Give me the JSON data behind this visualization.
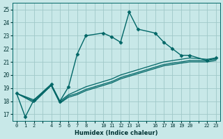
{
  "xlabel": "Humidex (Indice chaleur)",
  "ylabel": "",
  "bg_color": "#c8e8e8",
  "grid_color": "#a0c8c8",
  "line_color": "#006666",
  "ylim": [
    16.5,
    25.5
  ],
  "xlim": [
    -0.5,
    23.5
  ],
  "yticks": [
    17,
    18,
    19,
    20,
    21,
    22,
    23,
    24,
    25
  ],
  "xtick_positions": [
    0,
    1,
    2,
    3,
    4,
    5,
    6,
    7,
    8,
    9,
    10,
    11,
    12,
    13,
    14,
    15,
    16,
    17,
    18,
    19,
    20,
    21,
    22,
    23
  ],
  "xtick_labels": [
    "0",
    "1",
    "2",
    "",
    "4",
    "5",
    "6",
    "7",
    "8",
    "",
    "10",
    "11",
    "12",
    "13",
    "14",
    "",
    "16",
    "17",
    "18",
    "19",
    "20",
    "",
    "22",
    "23"
  ],
  "lines": [
    {
      "x": [
        0,
        1,
        2,
        4,
        5,
        6,
        7,
        8,
        10,
        11,
        12,
        13,
        14,
        16,
        17,
        18,
        19,
        20,
        22,
        23
      ],
      "y": [
        18.6,
        16.8,
        18.1,
        19.3,
        18.0,
        19.1,
        21.6,
        23.0,
        23.2,
        22.9,
        22.5,
        24.8,
        23.5,
        23.2,
        22.5,
        22.0,
        21.5,
        21.5,
        21.1,
        21.3
      ],
      "marker": "D",
      "markersize": 2.5,
      "linewidth": 1.0
    },
    {
      "x": [
        0,
        2,
        4,
        5,
        6,
        7,
        8,
        10,
        11,
        12,
        13,
        14,
        16,
        17,
        18,
        19,
        20,
        22,
        23
      ],
      "y": [
        18.6,
        18.1,
        19.2,
        18.0,
        18.5,
        18.8,
        19.1,
        19.5,
        19.7,
        20.0,
        20.2,
        20.4,
        20.8,
        21.0,
        21.1,
        21.2,
        21.3,
        21.2,
        21.3
      ],
      "marker": null,
      "markersize": 0,
      "linewidth": 0.9
    },
    {
      "x": [
        0,
        2,
        4,
        5,
        6,
        7,
        8,
        10,
        11,
        12,
        13,
        14,
        16,
        17,
        18,
        19,
        20,
        22,
        23
      ],
      "y": [
        18.6,
        18.0,
        19.2,
        17.9,
        18.4,
        18.6,
        18.9,
        19.3,
        19.5,
        19.8,
        20.0,
        20.2,
        20.6,
        20.8,
        20.9,
        21.0,
        21.1,
        21.1,
        21.2
      ],
      "marker": null,
      "markersize": 0,
      "linewidth": 0.9
    },
    {
      "x": [
        0,
        2,
        4,
        5,
        6,
        7,
        8,
        10,
        11,
        12,
        13,
        14,
        16,
        17,
        18,
        19,
        20,
        22,
        23
      ],
      "y": [
        18.6,
        17.9,
        19.2,
        17.85,
        18.3,
        18.5,
        18.8,
        19.2,
        19.4,
        19.7,
        19.9,
        20.1,
        20.5,
        20.7,
        20.8,
        20.9,
        21.0,
        21.0,
        21.1
      ],
      "marker": null,
      "markersize": 0,
      "linewidth": 0.9
    }
  ]
}
